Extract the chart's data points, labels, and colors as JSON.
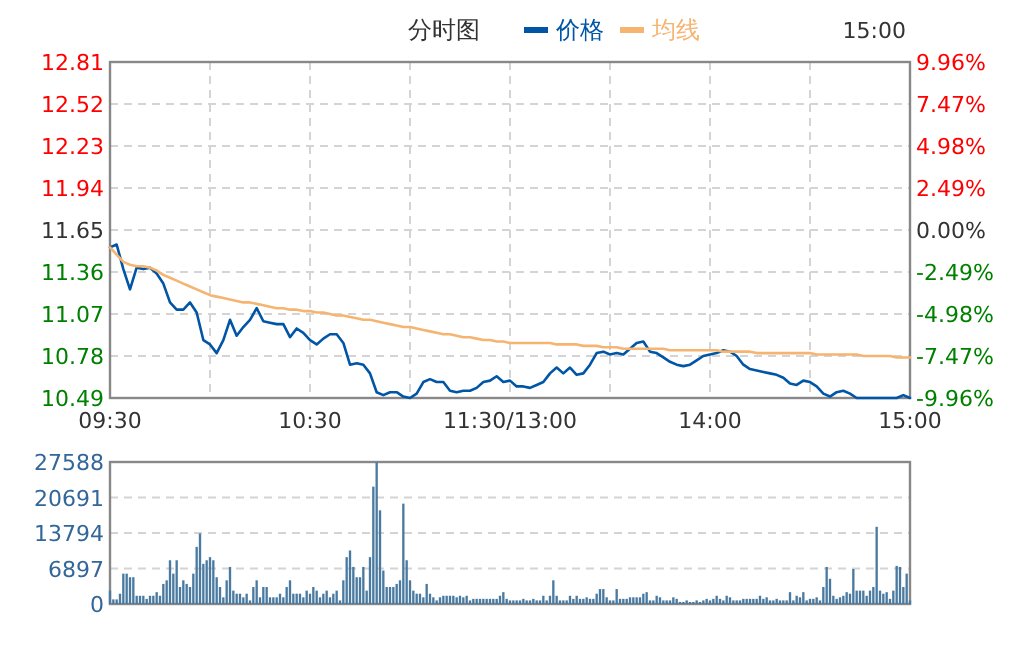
{
  "chart_data": [
    {
      "type": "line",
      "title": "分时图",
      "annotations": [
        "15:00"
      ],
      "legend": "top",
      "grid": true,
      "marker": "none",
      "categories": [
        "09:30",
        null,
        null,
        null,
        null,
        null,
        null,
        null,
        null,
        null,
        null,
        null,
        null,
        null,
        null,
        null,
        null,
        null,
        null,
        null,
        null,
        null,
        null,
        null,
        null,
        null,
        null,
        null,
        null,
        null,
        "10:30",
        null,
        null,
        null,
        null,
        null,
        null,
        null,
        null,
        null,
        null,
        null,
        null,
        null,
        null,
        null,
        null,
        null,
        null,
        null,
        null,
        null,
        null,
        null,
        null,
        null,
        null,
        null,
        null,
        null,
        "11:30/13:00",
        null,
        null,
        null,
        null,
        null,
        null,
        null,
        null,
        null,
        null,
        null,
        null,
        null,
        null,
        null,
        null,
        null,
        null,
        null,
        null,
        null,
        null,
        null,
        null,
        null,
        null,
        null,
        null,
        null,
        "14:00",
        null,
        null,
        null,
        null,
        null,
        null,
        null,
        null,
        null,
        null,
        null,
        null,
        null,
        null,
        null,
        null,
        null,
        null,
        null,
        null,
        null,
        null,
        null,
        null,
        null,
        null,
        null,
        null,
        null,
        "15:00"
      ],
      "ylim": [
        10.49,
        12.81
      ],
      "yticks": [
        10.49,
        10.78,
        11.07,
        11.36,
        11.65,
        11.94,
        12.23,
        12.52,
        12.81
      ],
      "y2lim": [
        -9.96,
        9.96
      ],
      "y2ticks": [
        {
          "value": -9.96,
          "label": "-9.96%"
        },
        {
          "value": -7.47,
          "label": "-7.47%"
        },
        {
          "value": -4.98,
          "label": "-4.98%"
        },
        {
          "value": -2.49,
          "label": "-2.49%"
        },
        {
          "value": 0,
          "label": "0.00%"
        },
        {
          "value": 2.49,
          "label": "2.49%"
        },
        {
          "value": 4.98,
          "label": "4.98%"
        },
        {
          "value": 7.47,
          "label": "7.47%"
        },
        {
          "value": 9.96,
          "label": "9.96%"
        }
      ],
      "series": [
        {
          "name": "价格",
          "color": "#0055a5",
          "values": [
            11.53,
            11.55,
            11.38,
            11.24,
            11.39,
            11.38,
            11.39,
            11.35,
            11.28,
            11.15,
            11.1,
            11.1,
            11.15,
            11.08,
            10.89,
            10.86,
            10.8,
            10.89,
            11.03,
            10.92,
            10.98,
            11.03,
            11.11,
            11.02,
            11.01,
            11.0,
            11.0,
            10.91,
            10.97,
            10.94,
            10.89,
            10.86,
            10.9,
            10.93,
            10.93,
            10.87,
            10.72,
            10.73,
            10.72,
            10.66,
            10.53,
            10.51,
            10.53,
            10.53,
            10.5,
            10.49,
            10.52,
            10.6,
            10.62,
            10.6,
            10.6,
            10.54,
            10.53,
            10.54,
            10.54,
            10.56,
            10.6,
            10.61,
            10.64,
            10.6,
            10.61,
            10.57,
            10.57,
            10.56,
            10.58,
            10.6,
            10.66,
            10.7,
            10.66,
            10.7,
            10.65,
            10.66,
            10.72,
            10.8,
            10.81,
            10.79,
            10.8,
            10.79,
            10.83,
            10.87,
            10.88,
            10.81,
            10.8,
            10.77,
            10.74,
            10.72,
            10.71,
            10.72,
            10.75,
            10.78,
            10.79,
            10.8,
            10.82,
            10.81,
            10.78,
            10.72,
            10.69,
            10.68,
            10.67,
            10.66,
            10.65,
            10.63,
            10.59,
            10.58,
            10.61,
            10.6,
            10.57,
            10.52,
            10.5,
            10.53,
            10.54,
            10.52,
            10.49,
            10.49,
            10.49,
            10.49,
            10.49,
            10.49,
            10.49,
            10.51,
            10.49
          ]
        },
        {
          "name": "均线",
          "color": "#f5b470",
          "values": [
            11.53,
            11.48,
            11.43,
            11.41,
            11.4,
            11.4,
            11.39,
            11.37,
            11.34,
            11.32,
            11.3,
            11.28,
            11.26,
            11.24,
            11.22,
            11.2,
            11.19,
            11.18,
            11.17,
            11.16,
            11.15,
            11.15,
            11.14,
            11.13,
            11.12,
            11.11,
            11.11,
            11.1,
            11.1,
            11.09,
            11.09,
            11.08,
            11.08,
            11.07,
            11.06,
            11.06,
            11.05,
            11.04,
            11.03,
            11.03,
            11.02,
            11.01,
            11.0,
            10.99,
            10.98,
            10.98,
            10.97,
            10.96,
            10.95,
            10.94,
            10.93,
            10.93,
            10.92,
            10.91,
            10.91,
            10.9,
            10.89,
            10.89,
            10.88,
            10.88,
            10.87,
            10.87,
            10.87,
            10.87,
            10.87,
            10.87,
            10.87,
            10.86,
            10.86,
            10.86,
            10.86,
            10.85,
            10.85,
            10.85,
            10.84,
            10.84,
            10.84,
            10.83,
            10.83,
            10.83,
            10.83,
            10.83,
            10.83,
            10.83,
            10.82,
            10.82,
            10.82,
            10.82,
            10.82,
            10.82,
            10.82,
            10.82,
            10.81,
            10.81,
            10.81,
            10.81,
            10.81,
            10.8,
            10.8,
            10.8,
            10.8,
            10.8,
            10.8,
            10.8,
            10.8,
            10.8,
            10.79,
            10.79,
            10.79,
            10.79,
            10.79,
            10.79,
            10.79,
            10.78,
            10.78,
            10.78,
            10.78,
            10.78,
            10.77,
            10.77,
            10.77
          ]
        }
      ]
    },
    {
      "type": "bar",
      "color": "#4a7aa0",
      "grid": "y",
      "tick_labels": "y",
      "categories": [
        null,
        null,
        null,
        null,
        null,
        null,
        null,
        null,
        null,
        null,
        null,
        null,
        null,
        null,
        null,
        null,
        null,
        null,
        null,
        null,
        null,
        null,
        null,
        null,
        null,
        null,
        null,
        null,
        null,
        null,
        null,
        null,
        null,
        null,
        null,
        null,
        null,
        null,
        null,
        null,
        null,
        null,
        null,
        null,
        null,
        null,
        null,
        null,
        null,
        null,
        null,
        null,
        null,
        null,
        null,
        null,
        null,
        null,
        null,
        null,
        null,
        null,
        null,
        null,
        null,
        null,
        null,
        null,
        null,
        null,
        null,
        null,
        null,
        null,
        null,
        null,
        null,
        null,
        null,
        null,
        null,
        null,
        null,
        null,
        null,
        null,
        null,
        null,
        null,
        null,
        null,
        null,
        null,
        null,
        null,
        null,
        null,
        null,
        null,
        null,
        null,
        null,
        null,
        null,
        null,
        null,
        null,
        null,
        null,
        null,
        null,
        null,
        null,
        null,
        null,
        null,
        null,
        null,
        null,
        null,
        null,
        null,
        null,
        null,
        null,
        null,
        null,
        null,
        null,
        null,
        null,
        null,
        null,
        null,
        null,
        null,
        null,
        null,
        null,
        null,
        null,
        null,
        null,
        null,
        null,
        null,
        null,
        null,
        null,
        null,
        null,
        null,
        null,
        null,
        null,
        null,
        null,
        null,
        null,
        null,
        null,
        null,
        null,
        null,
        null,
        null,
        null,
        null,
        null,
        null,
        null,
        null,
        null,
        null,
        null,
        null,
        null,
        null,
        null,
        null,
        null,
        null,
        null,
        null,
        null,
        null,
        null,
        null,
        null,
        null,
        null,
        null,
        null,
        null,
        null,
        null,
        null,
        null,
        null,
        null,
        null,
        null,
        null,
        null,
        null,
        null,
        null,
        null,
        null,
        null,
        null,
        null,
        null,
        null,
        null,
        null,
        null,
        null,
        null,
        null,
        null,
        null,
        null,
        null,
        null,
        null,
        null,
        null,
        null,
        null,
        null,
        null,
        null,
        null,
        null,
        null,
        null,
        null,
        null,
        null,
        null
      ],
      "ylim": [
        0,
        27588
      ],
      "yticks": [
        0,
        6897,
        13794,
        20691,
        27588
      ],
      "values": [
        2600,
        900,
        900,
        2000,
        5900,
        5900,
        5200,
        5200,
        1600,
        1600,
        1600,
        1000,
        1600,
        1600,
        2300,
        1600,
        3900,
        4600,
        8500,
        5900,
        8500,
        3300,
        4600,
        3900,
        3300,
        5900,
        11100,
        13700,
        7800,
        8500,
        9100,
        8500,
        5200,
        3300,
        1300,
        4600,
        7200,
        2600,
        2000,
        2000,
        1300,
        2000,
        700,
        3300,
        4600,
        1300,
        3300,
        3300,
        1300,
        1300,
        1300,
        2000,
        1300,
        3300,
        4600,
        2000,
        2000,
        2000,
        1300,
        2600,
        2000,
        3300,
        2600,
        1300,
        2000,
        2600,
        1300,
        2000,
        2600,
        700,
        4600,
        9100,
        10400,
        7200,
        5200,
        5200,
        7200,
        2600,
        9100,
        22800,
        27500,
        18200,
        6500,
        3300,
        3300,
        3300,
        3900,
        4600,
        19500,
        8500,
        4600,
        2600,
        2000,
        2000,
        1300,
        3900,
        2000,
        1300,
        700,
        1300,
        1600,
        1600,
        1600,
        1600,
        1300,
        1600,
        1300,
        1600,
        700,
        1000,
        1000,
        1000,
        1000,
        1000,
        1000,
        1000,
        1000,
        1600,
        2300,
        1000,
        700,
        700,
        700,
        700,
        1000,
        700,
        700,
        1000,
        700,
        700,
        1600,
        700,
        1600,
        4600,
        1600,
        700,
        700,
        700,
        1600,
        1000,
        1600,
        1000,
        1000,
        1300,
        1000,
        1000,
        2000,
        2900,
        2900,
        1300,
        700,
        700,
        2900,
        1000,
        1000,
        1000,
        1300,
        1300,
        1300,
        1300,
        2000,
        2300,
        700,
        700,
        1600,
        1300,
        700,
        700,
        700,
        1300,
        1000,
        400,
        400,
        700,
        400,
        400,
        700,
        400,
        700,
        1000,
        700,
        1000,
        1600,
        1000,
        700,
        1600,
        1300,
        700,
        700,
        700,
        1000,
        1000,
        1000,
        1000,
        1000,
        1600,
        1000,
        1300,
        700,
        700,
        1000,
        700,
        700,
        700,
        2300,
        700,
        1600,
        1300,
        2300,
        700,
        1000,
        1000,
        1300,
        700,
        3300,
        7200,
        4900,
        1600,
        1000,
        1300,
        1600,
        2300,
        2000,
        6800,
        2600,
        2600,
        2600,
        1600,
        2600,
        3300,
        15000,
        2600,
        2000,
        2300,
        1000,
        2600,
        7400,
        7200,
        3300,
        5900,
        700
      ]
    }
  ]
}
